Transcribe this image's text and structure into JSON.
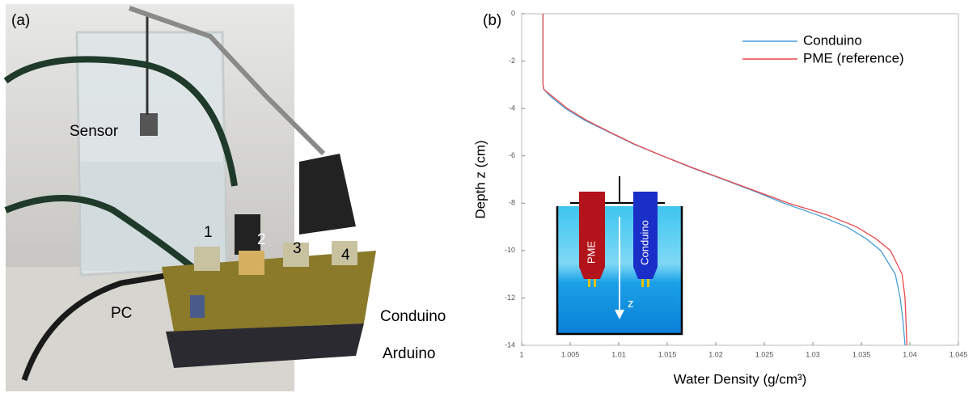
{
  "panel_a": {
    "label": "(a)",
    "sensor": "Sensor",
    "ports": [
      "1",
      "2",
      "3",
      "4"
    ],
    "pc": "PC",
    "conduino": "Conduino",
    "arduino": "Arduino"
  },
  "chart_data": {
    "type": "line",
    "label": "(b)",
    "xlabel": "Water Density (g/cm³)",
    "ylabel": "Depth z (cm)",
    "xlim": [
      1,
      1.045
    ],
    "xticks": [
      1,
      1.005,
      1.01,
      1.015,
      1.02,
      1.025,
      1.03,
      1.035,
      1.04,
      1.045
    ],
    "ylim": [
      -14,
      0
    ],
    "yticks": [
      0,
      -2,
      -4,
      -6,
      -8,
      -10,
      -12,
      -14
    ],
    "depths": [
      0,
      -3,
      -3.2,
      -3.5,
      -4,
      -4.5,
      -5,
      -5.5,
      -6,
      -6.5,
      -7,
      -7.5,
      -8,
      -8.5,
      -9,
      -9.5,
      -10,
      -11,
      -12,
      -13,
      -14
    ],
    "series": [
      {
        "name": "Conduino",
        "color": "#4a9fd8",
        "values": [
          1.0022,
          1.0022,
          1.0023,
          1.003,
          1.0045,
          1.0065,
          1.009,
          1.0115,
          1.0145,
          1.0175,
          1.0208,
          1.024,
          1.027,
          1.0305,
          1.0335,
          1.0355,
          1.037,
          1.0385,
          1.039,
          1.0393,
          1.0395
        ]
      },
      {
        "name": "PME (reference)",
        "color": "#e8474a",
        "values": [
          1.0022,
          1.0022,
          1.0023,
          1.0032,
          1.0047,
          1.0067,
          1.0091,
          1.0116,
          1.0145,
          1.0176,
          1.0209,
          1.0242,
          1.0275,
          1.0315,
          1.0345,
          1.0365,
          1.038,
          1.0392,
          1.0395,
          1.0396,
          1.0397
        ]
      }
    ],
    "legend": "upper right",
    "inset": {
      "probe_a": "PME",
      "probe_b": "Conduino",
      "axis": "z"
    }
  }
}
